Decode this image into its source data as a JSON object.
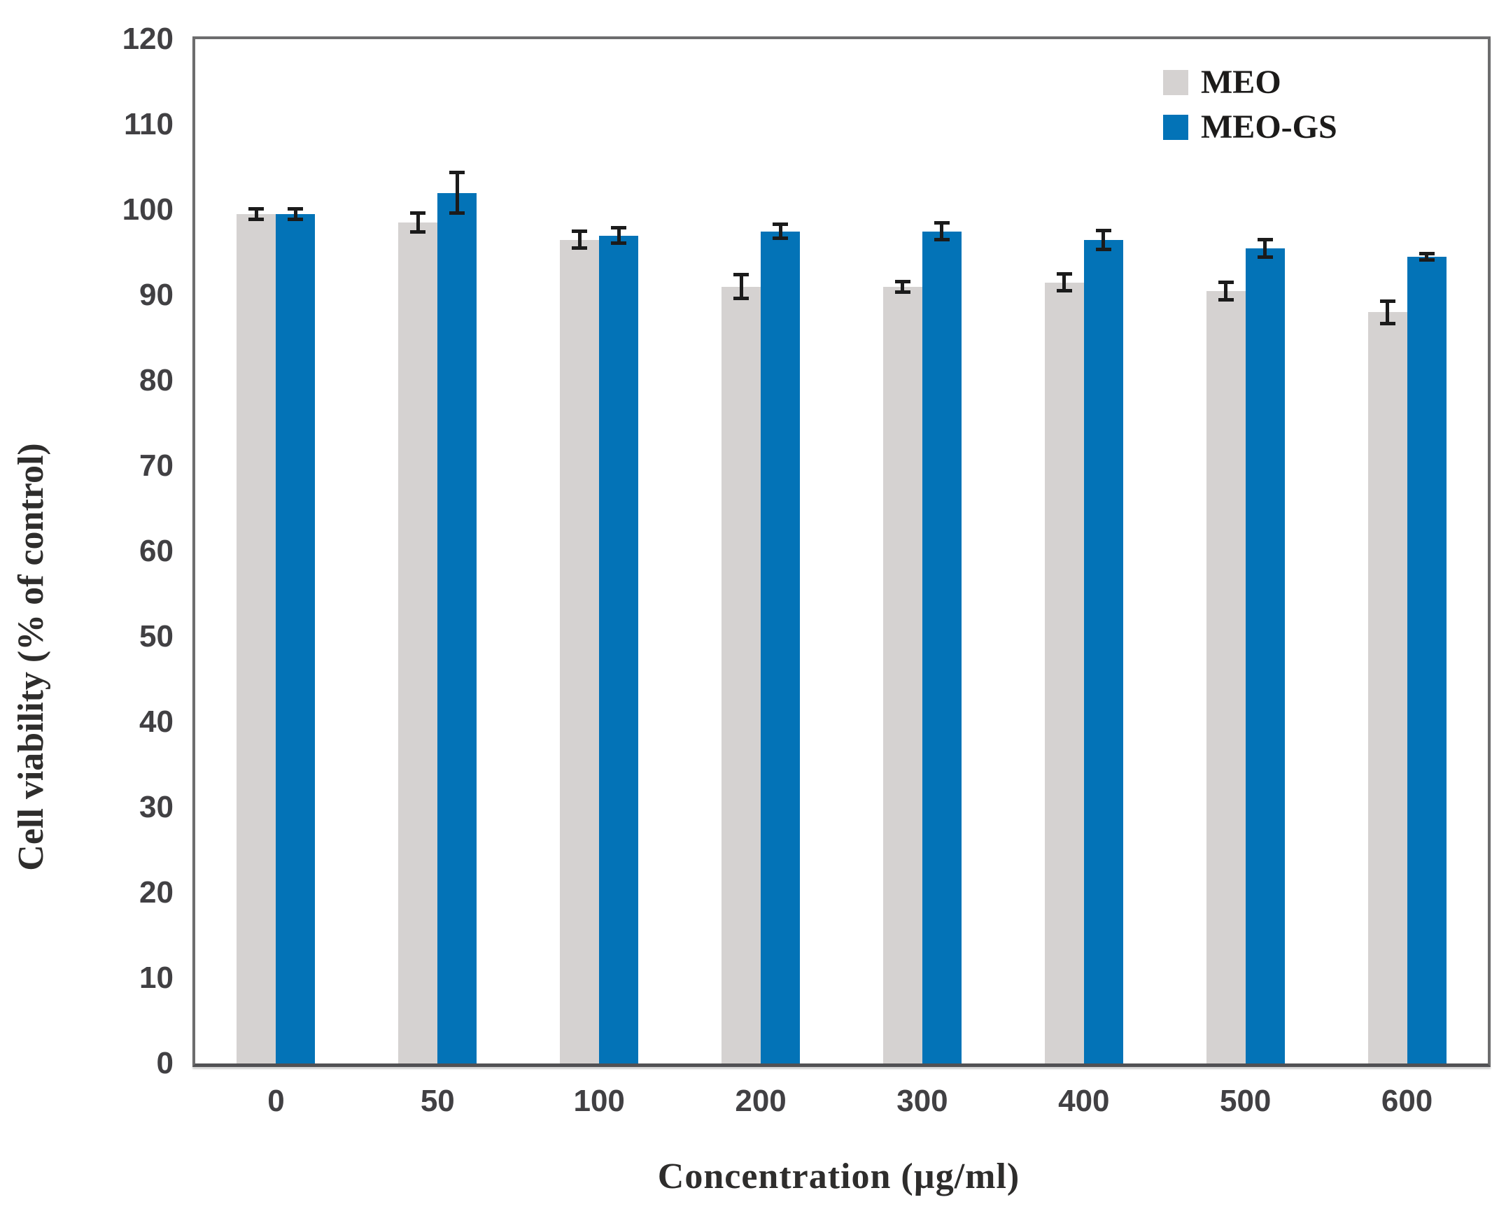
{
  "chart_data": {
    "type": "bar",
    "title": "",
    "xlabel": "Concentration (µg/ml)",
    "ylabel": "Cell viability (% of control)",
    "categories": [
      "0",
      "50",
      "100",
      "200",
      "300",
      "400",
      "500",
      "600"
    ],
    "series": [
      {
        "name": "MEO",
        "color": "#d5d2d1",
        "values": [
          99.5,
          98.5,
          96.5,
          91,
          91,
          91.5,
          90.5,
          88
        ],
        "errors": [
          0.8,
          1.3,
          1.2,
          1.6,
          0.8,
          1.2,
          1.2,
          1.5
        ]
      },
      {
        "name": "MEO-GS",
        "color": "#0373b7",
        "values": [
          99.5,
          102,
          97,
          97.5,
          97.5,
          96.5,
          95.5,
          94.5
        ],
        "errors": [
          0.8,
          2.6,
          1.1,
          1.0,
          1.2,
          1.3,
          1.2,
          0.6
        ]
      }
    ],
    "ylim": [
      0,
      120
    ],
    "yticks": [
      0,
      10,
      20,
      30,
      40,
      50,
      60,
      70,
      80,
      90,
      100,
      110,
      120
    ],
    "grid": false,
    "legend_position": "top-right",
    "error_bar_color": "#1b1b1b",
    "axis_color": "#6d6d6e"
  },
  "legend": {
    "items": [
      {
        "label": "MEO"
      },
      {
        "label": "MEO-GS"
      }
    ]
  }
}
